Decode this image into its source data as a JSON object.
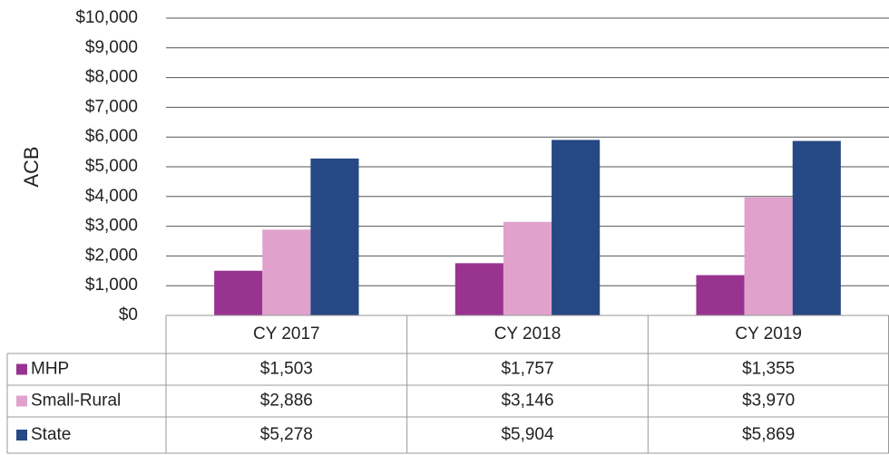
{
  "chart_data": {
    "type": "bar",
    "y_label": "ACB",
    "categories": [
      "CY 2017",
      "CY 2018",
      "CY 2019"
    ],
    "series": [
      {
        "name": "MHP",
        "color": "#993390",
        "values": [
          1503,
          1757,
          1355
        ],
        "value_labels": [
          "$1,503",
          "$1,757",
          "$1,355"
        ]
      },
      {
        "name": "Small-Rural",
        "color": "#e0a2cc",
        "values": [
          2886,
          3146,
          3970
        ],
        "value_labels": [
          "$2,886",
          "$3,146",
          "$3,970"
        ]
      },
      {
        "name": "State",
        "color": "#264884",
        "values": [
          5278,
          5904,
          5869
        ],
        "value_labels": [
          "$5,278",
          "$5,904",
          "$5,869"
        ]
      }
    ],
    "ylim": [
      0,
      10000
    ],
    "yticks": [
      {
        "value": 0,
        "label": "$0"
      },
      {
        "value": 1000,
        "label": "$1,000"
      },
      {
        "value": 2000,
        "label": "$2,000"
      },
      {
        "value": 3000,
        "label": "$3,000"
      },
      {
        "value": 4000,
        "label": "$4,000"
      },
      {
        "value": 5000,
        "label": "$5,000"
      },
      {
        "value": 6000,
        "label": "$6,000"
      },
      {
        "value": 7000,
        "label": "$7,000"
      },
      {
        "value": 8000,
        "label": "$8,000"
      },
      {
        "value": 9000,
        "label": "$9,000"
      },
      {
        "value": 10000,
        "label": "$10,000"
      }
    ],
    "grid": true
  }
}
